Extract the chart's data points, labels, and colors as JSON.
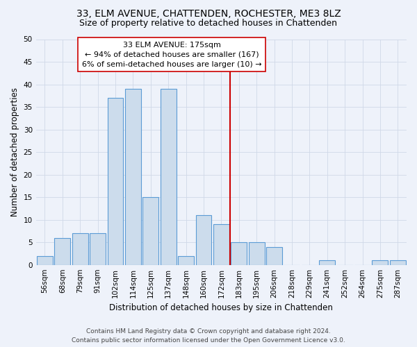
{
  "title": "33, ELM AVENUE, CHATTENDEN, ROCHESTER, ME3 8LZ",
  "subtitle": "Size of property relative to detached houses in Chattenden",
  "xlabel": "Distribution of detached houses by size in Chattenden",
  "ylabel": "Number of detached properties",
  "footnote": "Contains HM Land Registry data © Crown copyright and database right 2024.\nContains public sector information licensed under the Open Government Licence v3.0.",
  "bar_labels": [
    "56sqm",
    "68sqm",
    "79sqm",
    "91sqm",
    "102sqm",
    "114sqm",
    "125sqm",
    "137sqm",
    "148sqm",
    "160sqm",
    "172sqm",
    "183sqm",
    "195sqm",
    "206sqm",
    "218sqm",
    "229sqm",
    "241sqm",
    "252sqm",
    "264sqm",
    "275sqm",
    "287sqm"
  ],
  "bar_values": [
    2,
    6,
    7,
    7,
    37,
    39,
    15,
    39,
    2,
    11,
    9,
    5,
    5,
    4,
    0,
    0,
    1,
    0,
    0,
    1,
    1
  ],
  "bar_color": "#ccdcec",
  "bar_edge_color": "#5b9bd5",
  "annotation_line_color": "#cc0000",
  "annotation_box_color": "#ffffff",
  "annotation_box_edge_color": "#cc0000",
  "annotation_box_text": "33 ELM AVENUE: 175sqm\n← 94% of detached houses are smaller (167)\n6% of semi-detached houses are larger (10) →",
  "ylim": [
    0,
    50
  ],
  "yticks": [
    0,
    5,
    10,
    15,
    20,
    25,
    30,
    35,
    40,
    45,
    50
  ],
  "grid_color": "#d0d8e8",
  "bg_color": "#eef2fa",
  "title_fontsize": 10,
  "subtitle_fontsize": 9,
  "axis_label_fontsize": 8.5,
  "tick_fontsize": 7.5,
  "annotation_fontsize": 8,
  "footnote_fontsize": 6.5,
  "line_x_index": 10.5
}
